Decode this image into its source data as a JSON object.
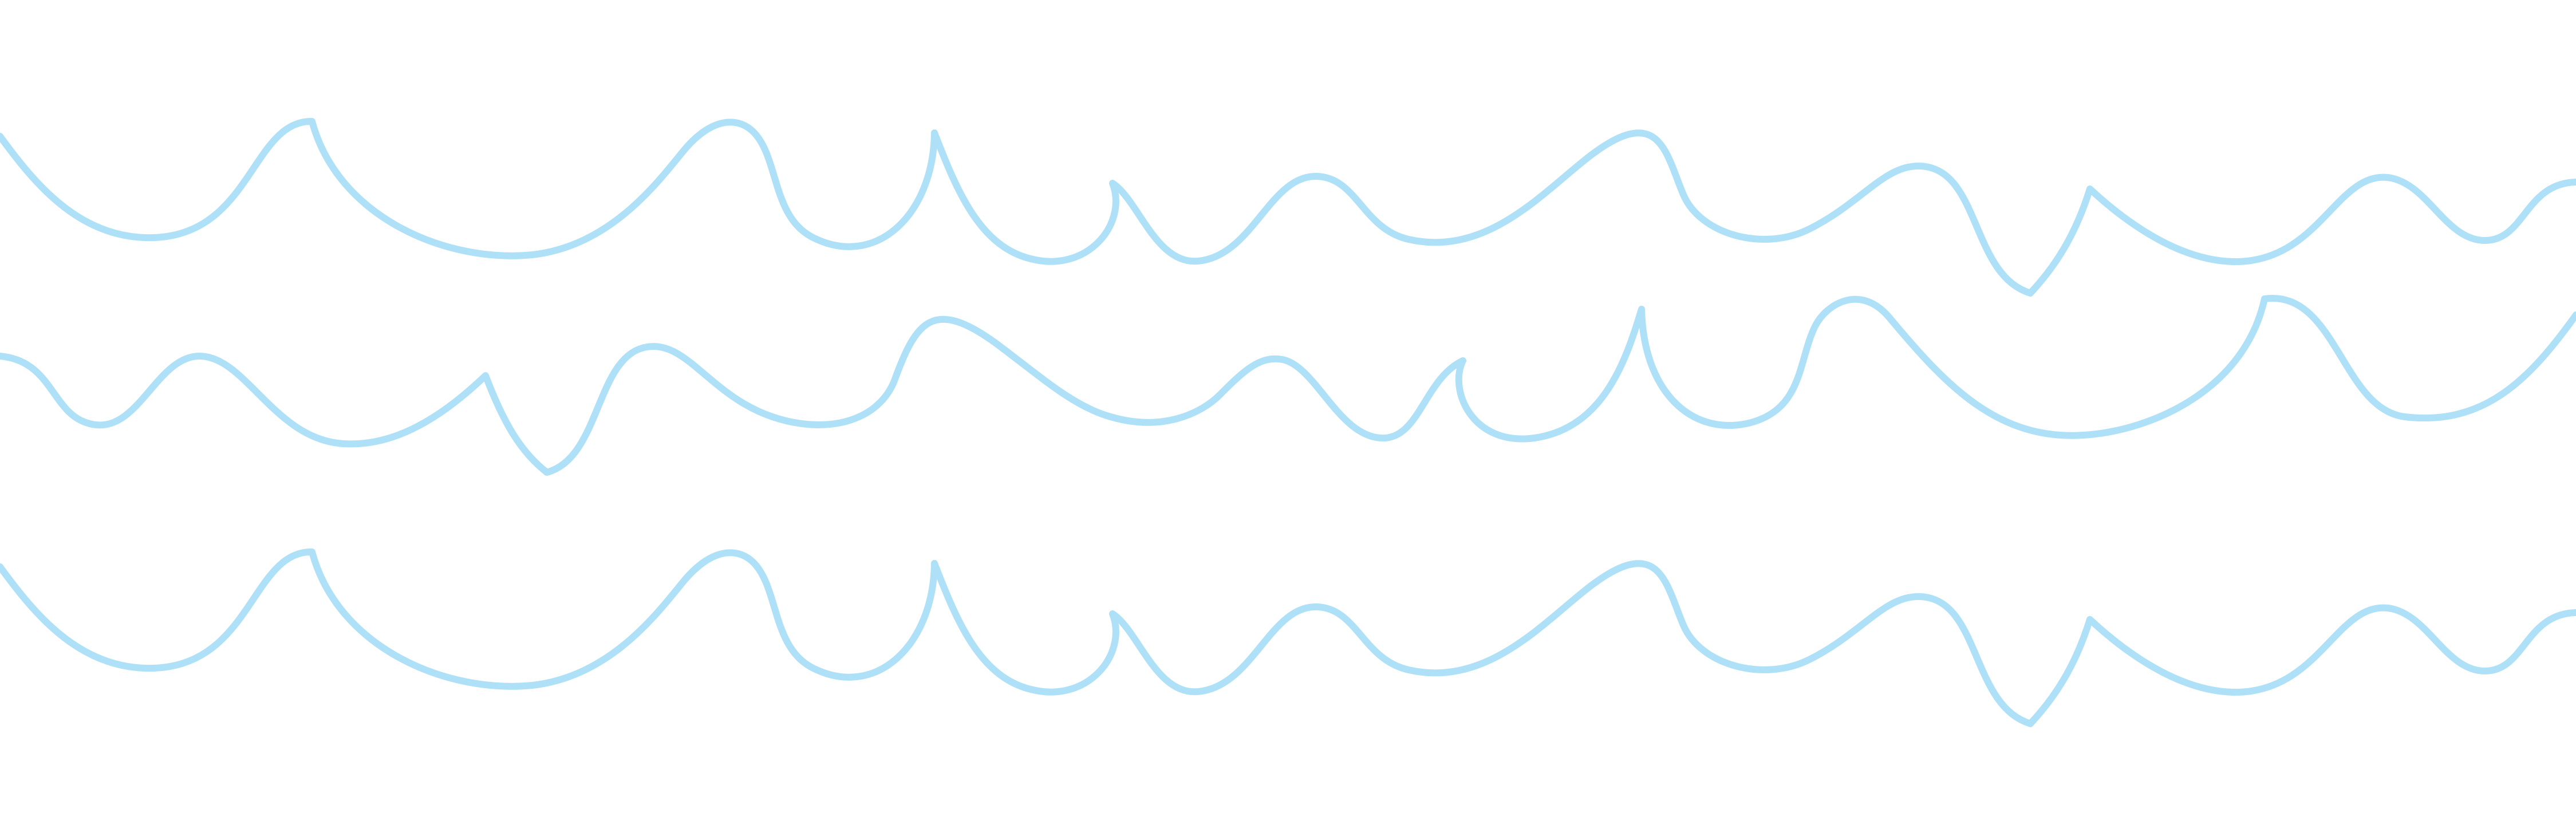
{
  "pattern": {
    "stroke_color": "#aee0f8",
    "background_color": "#ffffff",
    "lines": [
      {
        "id": "wave-top"
      },
      {
        "id": "wave-middle"
      },
      {
        "id": "wave-bottom"
      }
    ]
  }
}
